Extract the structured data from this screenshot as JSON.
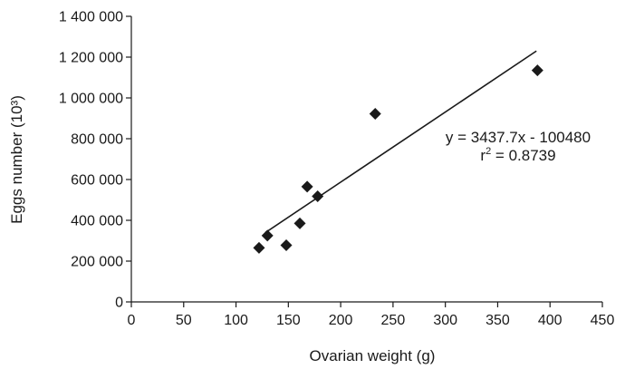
{
  "chart_data": {
    "type": "scatter",
    "title": "",
    "xlabel": "Ovarian weight (g)",
    "ylabel": "Eggs number (10³)",
    "xlim": [
      0,
      450
    ],
    "ylim": [
      0,
      1400000
    ],
    "x_ticks": [
      0,
      50,
      100,
      150,
      200,
      250,
      300,
      350,
      400,
      450
    ],
    "y_ticks": [
      0,
      200000,
      400000,
      600000,
      800000,
      1000000,
      1200000,
      1400000
    ],
    "x_tick_labels": [
      "0",
      "50",
      "100",
      "150",
      "200",
      "250",
      "300",
      "350",
      "400",
      "450"
    ],
    "y_tick_labels": [
      "0",
      "200 000",
      "400 000",
      "600 000",
      "800 000",
      "1 000 000",
      "1 200 000",
      "1 400 000"
    ],
    "grid": false,
    "legend": null,
    "marker": "diamond",
    "color": "#1a1a1a",
    "series": [
      {
        "points": [
          [
            122,
            265000
          ],
          [
            130,
            325000
          ],
          [
            148,
            278000
          ],
          [
            161,
            385000
          ],
          [
            168,
            565000
          ],
          [
            178,
            518000
          ],
          [
            233,
            922000
          ],
          [
            388,
            1135000
          ]
        ]
      }
    ],
    "trendline": {
      "type": "linear",
      "slope": 3437.7,
      "intercept": -100480,
      "x_range": [
        128,
        387
      ],
      "equation": "y = 3437.7x - 100480",
      "r2_prefix": "r",
      "r2_sup": "2",
      "r2_value": " = 0.8739"
    }
  }
}
